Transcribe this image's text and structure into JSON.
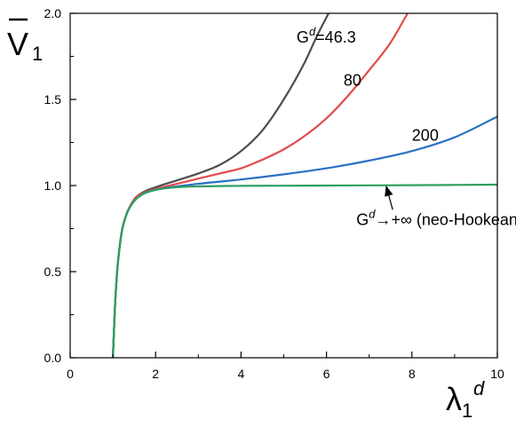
{
  "chart_data": {
    "type": "line",
    "xlim": [
      0,
      10
    ],
    "ylim": [
      0.0,
      2.0
    ],
    "x_ticks": [
      "0",
      "2",
      "4",
      "6",
      "8",
      "10"
    ],
    "y_ticks": [
      "0.0",
      "0.5",
      "1.0",
      "1.5",
      "2.0"
    ],
    "xlabel": {
      "base": "λ",
      "sub": "1",
      "sup": "d"
    },
    "ylabel": {
      "base": "V",
      "sub": "1",
      "overbar": true
    },
    "grid": false,
    "legend": "none",
    "series": [
      {
        "color": "#4d4d4d",
        "x": [
          1.0,
          1.05,
          1.1,
          1.2,
          1.3,
          1.5,
          1.7,
          2.0,
          2.5,
          3.0,
          3.5,
          4.0,
          4.5,
          5.0,
          5.5,
          5.8,
          6.05
        ],
        "y": [
          0.0,
          0.3,
          0.5,
          0.72,
          0.82,
          0.92,
          0.96,
          0.99,
          1.03,
          1.07,
          1.12,
          1.2,
          1.32,
          1.5,
          1.72,
          1.88,
          2.0
        ]
      },
      {
        "color": "#e34a4a",
        "x": [
          1.0,
          1.05,
          1.1,
          1.2,
          1.3,
          1.5,
          1.7,
          2.0,
          2.5,
          3.0,
          3.5,
          4.0,
          4.5,
          5.0,
          5.5,
          6.0,
          6.5,
          7.0,
          7.5,
          7.9
        ],
        "y": [
          0.0,
          0.3,
          0.5,
          0.72,
          0.82,
          0.92,
          0.955,
          0.98,
          1.01,
          1.04,
          1.07,
          1.1,
          1.15,
          1.21,
          1.29,
          1.39,
          1.52,
          1.67,
          1.83,
          2.0
        ]
      },
      {
        "color": "#2a6fc4",
        "x": [
          1.0,
          1.05,
          1.1,
          1.2,
          1.3,
          1.5,
          1.7,
          2.0,
          2.5,
          3.0,
          4.0,
          5.0,
          6.0,
          7.0,
          8.0,
          9.0,
          10.0
        ],
        "y": [
          0.0,
          0.3,
          0.5,
          0.72,
          0.82,
          0.91,
          0.95,
          0.975,
          0.995,
          1.01,
          1.035,
          1.065,
          1.1,
          1.145,
          1.2,
          1.28,
          1.4
        ]
      },
      {
        "color": "#2e9e5e",
        "x": [
          1.0,
          1.05,
          1.1,
          1.2,
          1.3,
          1.5,
          1.7,
          2.0,
          2.5,
          3.0,
          4.0,
          5.0,
          6.0,
          8.0,
          10.0
        ],
        "y": [
          0.0,
          0.3,
          0.5,
          0.72,
          0.82,
          0.91,
          0.95,
          0.975,
          0.99,
          0.995,
          0.998,
          0.999,
          1.0,
          1.002,
          1.005
        ]
      }
    ],
    "annotations": [
      {
        "id": "g46",
        "text_base": "G",
        "text_sup": "d",
        "text_rest": "=46.3",
        "x": 5.3,
        "y": 1.83
      },
      {
        "id": "g80",
        "text_base": "80",
        "text_sup": "",
        "text_rest": "",
        "x": 6.4,
        "y": 1.58
      },
      {
        "id": "g200",
        "text_base": "200",
        "text_sup": "",
        "text_rest": "",
        "x": 8.0,
        "y": 1.26
      },
      {
        "id": "ginf",
        "text_base": "G",
        "text_sup": "d",
        "text_rest": "→+∞ (neo-Hookean)",
        "x": 6.7,
        "y": 0.77
      }
    ],
    "arrow": {
      "from": [
        7.55,
        0.86
      ],
      "to": [
        7.4,
        0.995
      ]
    }
  }
}
